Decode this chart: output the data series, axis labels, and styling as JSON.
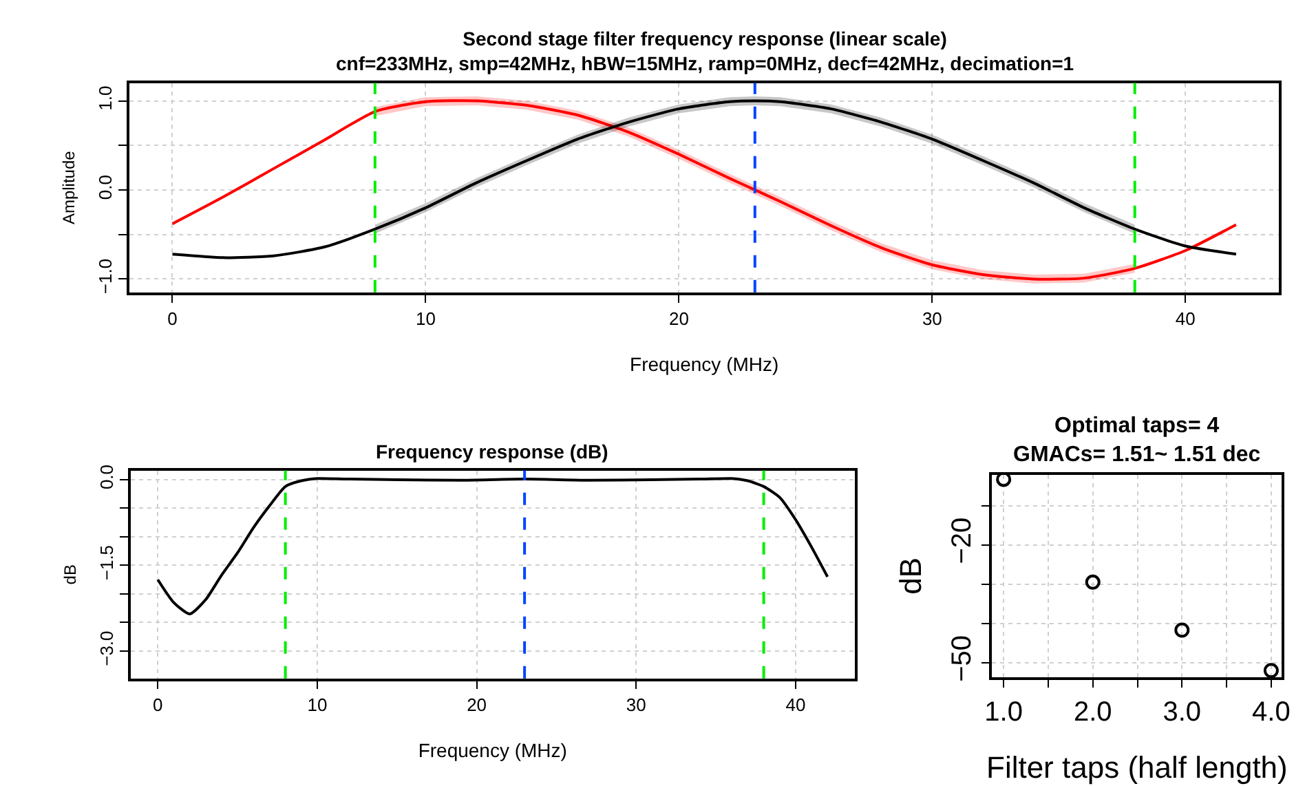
{
  "chart_data": [
    {
      "type": "line",
      "title": "Second stage filter frequency response (linear scale)",
      "subtitle": "cnf=233MHz, smp=42MHz, hBW=15MHz, ramp=0MHz, decf=42MHz, decimation=1",
      "xlabel": "Frequency (MHz)",
      "ylabel": "Amplitude",
      "x": [
        0,
        2,
        4,
        6,
        8,
        10,
        12,
        14,
        16,
        18,
        20,
        22,
        23,
        24,
        26,
        28,
        30,
        32,
        34,
        36,
        38,
        40,
        42
      ],
      "series": [
        {
          "color": "#ff0000",
          "values": [
            -0.38,
            -0.08,
            0.24,
            0.56,
            0.88,
            0.99,
            1.0,
            0.95,
            0.84,
            0.65,
            0.4,
            0.13,
            0.0,
            -0.13,
            -0.4,
            -0.65,
            -0.84,
            -0.95,
            -1.0,
            -0.99,
            -0.88,
            -0.68,
            -0.39
          ],
          "lower": [
            null,
            null,
            null,
            null,
            0.83,
            0.94,
            0.95,
            0.9,
            0.79,
            0.6,
            0.35,
            0.08,
            -0.05,
            -0.18,
            -0.45,
            -0.7,
            -0.89,
            -1.0,
            -1.05,
            -1.04,
            -0.93,
            null,
            null
          ],
          "upper": [
            null,
            null,
            null,
            null,
            0.93,
            1.04,
            1.05,
            1.0,
            0.89,
            0.7,
            0.45,
            0.18,
            0.05,
            -0.08,
            -0.35,
            -0.6,
            -0.79,
            -0.9,
            -0.95,
            -0.94,
            -0.83,
            null,
            null
          ]
        },
        {
          "color": "#000000",
          "values": [
            -0.72,
            -0.76,
            -0.74,
            -0.64,
            -0.44,
            -0.2,
            0.08,
            0.33,
            0.57,
            0.76,
            0.91,
            0.99,
            1.0,
            0.99,
            0.91,
            0.76,
            0.57,
            0.33,
            0.08,
            -0.2,
            -0.44,
            -0.63,
            -0.72
          ],
          "lower": [
            null,
            null,
            null,
            null,
            -0.49,
            -0.25,
            0.03,
            0.28,
            0.52,
            0.71,
            0.86,
            0.94,
            0.95,
            0.94,
            0.86,
            0.71,
            0.52,
            0.28,
            0.03,
            -0.25,
            -0.49,
            null,
            null
          ],
          "upper": [
            null,
            null,
            null,
            null,
            -0.39,
            -0.15,
            0.13,
            0.38,
            0.62,
            0.81,
            0.96,
            1.04,
            1.05,
            1.04,
            0.96,
            0.81,
            0.62,
            0.38,
            0.13,
            -0.15,
            -0.39,
            null,
            null
          ]
        }
      ],
      "xlim": [
        -1.7,
        43.7
      ],
      "xticks": [
        0,
        10,
        20,
        30,
        40
      ],
      "ylim": [
        -1.15,
        1.2
      ],
      "yticks": [
        {
          "value": -1.0,
          "label": "−1.0"
        },
        {
          "value": -0.5,
          "label": null
        },
        {
          "value": 0.0,
          "label": "0.0"
        },
        {
          "value": 0.5,
          "label": null
        },
        {
          "value": 1.0,
          "label": "1.0"
        }
      ],
      "ref_lines": [
        {
          "axis": "x",
          "value": 8,
          "color": "#00ee00",
          "line_style": "dashed"
        },
        {
          "axis": "x",
          "value": 23,
          "color": "#0044ff",
          "line_style": "dashed"
        },
        {
          "axis": "x",
          "value": 38,
          "color": "#00ee00",
          "line_style": "dashed"
        }
      ],
      "grid": true,
      "line_style": "solid"
    },
    {
      "type": "line",
      "title": "Frequency response (dB)",
      "xlabel": "Frequency (MHz)",
      "ylabel": "dB",
      "x": [
        0,
        1,
        2,
        3,
        4,
        5,
        6,
        7,
        8,
        9,
        10,
        12,
        15,
        19,
        23,
        27,
        31,
        34,
        36,
        37,
        38,
        39,
        40,
        41,
        42
      ],
      "series": [
        {
          "color": "#000000",
          "values": [
            -1.75,
            -2.15,
            -2.35,
            -2.1,
            -1.67,
            -1.28,
            -0.84,
            -0.46,
            -0.12,
            -0.02,
            0.02,
            0.01,
            0.0,
            -0.01,
            0.01,
            -0.01,
            0.0,
            0.01,
            0.02,
            -0.02,
            -0.12,
            -0.31,
            -0.7,
            -1.18,
            -1.7
          ]
        }
      ],
      "xlim": [
        -1.7,
        43.7
      ],
      "xticks": [
        0,
        10,
        20,
        30,
        40
      ],
      "ylim": [
        -3.48,
        0.16
      ],
      "yticks": [
        {
          "value": -3.0,
          "label": "−3.0"
        },
        {
          "value": -2.5,
          "label": null
        },
        {
          "value": -2.0,
          "label": null
        },
        {
          "value": -1.5,
          "label": "−1.5"
        },
        {
          "value": -1.0,
          "label": null
        },
        {
          "value": -0.5,
          "label": null
        },
        {
          "value": 0.0,
          "label": "0.0"
        }
      ],
      "ref_lines": [
        {
          "axis": "x",
          "value": 8,
          "color": "#00ee00",
          "line_style": "dashed"
        },
        {
          "axis": "x",
          "value": 23,
          "color": "#0044ff",
          "line_style": "dashed"
        },
        {
          "axis": "x",
          "value": 38,
          "color": "#00ee00",
          "line_style": "dashed"
        }
      ],
      "grid": true,
      "line_style": "solid"
    },
    {
      "type": "scatter",
      "title": "Optimal taps= 4",
      "subtitle": "GMACs= 1.51~ 1.51 dec",
      "xlabel": "Filter taps (half length)",
      "ylabel": "dB",
      "x": [
        1,
        2,
        3,
        4
      ],
      "series": [
        {
          "color": "#000000",
          "values": [
            -3.3,
            -29.5,
            -41.7,
            -52
          ]
        }
      ],
      "xlim": [
        0.87,
        4.12
      ],
      "xticks": [
        {
          "value": 1.0,
          "label": "1.0"
        },
        {
          "value": 1.5,
          "label": null
        },
        {
          "value": 2.0,
          "label": "2.0"
        },
        {
          "value": 2.5,
          "label": null
        },
        {
          "value": 3.0,
          "label": "3.0"
        },
        {
          "value": 3.5,
          "label": null
        },
        {
          "value": 4.0,
          "label": "4.0"
        }
      ],
      "ylim": [
        -53.7,
        -2.1
      ],
      "yticks": [
        {
          "value": -50,
          "label": "−50"
        },
        {
          "value": -40,
          "label": null
        },
        {
          "value": -30,
          "label": null
        },
        {
          "value": -20,
          "label": "−20"
        },
        {
          "value": -10,
          "label": null
        }
      ],
      "grid": true,
      "marker": "circle"
    }
  ]
}
